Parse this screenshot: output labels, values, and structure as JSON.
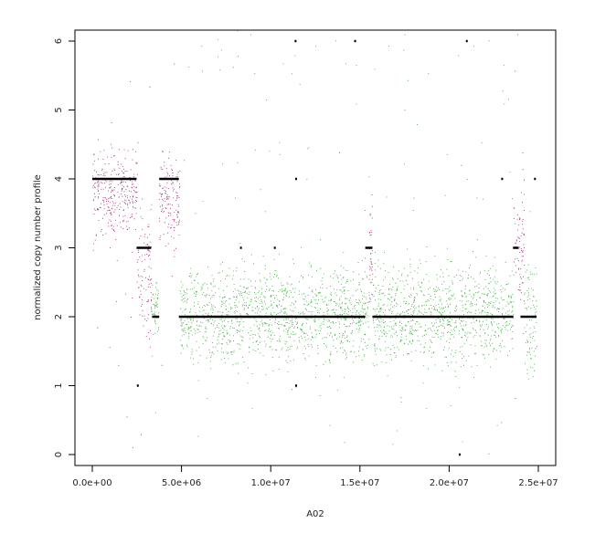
{
  "chart_data": {
    "type": "scatter",
    "title": "",
    "xlabel": "A02",
    "ylabel": "normalized copy number profile",
    "xlim": [
      0,
      25000000
    ],
    "ylim": [
      0,
      6.2
    ],
    "xticks": [
      0,
      5000000,
      10000000,
      15000000,
      20000000,
      25000000
    ],
    "xtick_labels": [
      "0.0e+00",
      "5.0e+06",
      "1.0e+07",
      "1.5e+07",
      "2.0e+07",
      "2.5e+07"
    ],
    "yticks": [
      0,
      1,
      2,
      3,
      4,
      5,
      6
    ],
    "ytick_labels": [
      "0",
      "1",
      "2",
      "3",
      "4",
      "5",
      "6"
    ],
    "grid": false,
    "legend": "none",
    "colors": {
      "gain": "#9b2a78",
      "normal": "#3aa83a",
      "loss": "#4a4a9a",
      "segment": "#000000"
    },
    "point_density": [
      {
        "x_range": [
          0,
          2500000
        ],
        "center": 3.8,
        "spread": 0.6,
        "color": "gain"
      },
      {
        "x_range": [
          2500000,
          3300000
        ],
        "center": 2.6,
        "spread": 0.9,
        "color": "gain"
      },
      {
        "x_range": [
          3300000,
          3700000
        ],
        "center": 2.1,
        "spread": 0.5,
        "color": "normal"
      },
      {
        "x_range": [
          3700000,
          4900000
        ],
        "center": 3.7,
        "spread": 0.7,
        "color": "gain"
      },
      {
        "x_range": [
          4900000,
          15500000
        ],
        "center": 2.05,
        "spread": 0.7,
        "color": "normal"
      },
      {
        "x_range": [
          15500000,
          15700000
        ],
        "center": 2.9,
        "spread": 0.8,
        "color": "gain"
      },
      {
        "x_range": [
          15700000,
          23600000
        ],
        "center": 2.05,
        "spread": 0.7,
        "color": "normal"
      },
      {
        "x_range": [
          23600000,
          24200000
        ],
        "center": 3.0,
        "spread": 0.9,
        "color": "gain"
      },
      {
        "x_range": [
          24200000,
          24900000
        ],
        "center": 2.0,
        "spread": 0.8,
        "color": "normal"
      }
    ],
    "segments": [
      {
        "x0": 0,
        "x1": 2480000,
        "y": 4
      },
      {
        "x0": 2500000,
        "x1": 2530000,
        "y": 1
      },
      {
        "x0": 2480000,
        "x1": 3300000,
        "y": 3
      },
      {
        "x0": 3350000,
        "x1": 3750000,
        "y": 2
      },
      {
        "x0": 3750000,
        "x1": 4850000,
        "y": 4
      },
      {
        "x0": 4850000,
        "x1": 15300000,
        "y": 2
      },
      {
        "x0": 8280000,
        "x1": 8360000,
        "y": 3
      },
      {
        "x0": 10180000,
        "x1": 10260000,
        "y": 3
      },
      {
        "x0": 11340000,
        "x1": 11400000,
        "y": 6
      },
      {
        "x0": 11370000,
        "x1": 11430000,
        "y": 4
      },
      {
        "x0": 11370000,
        "x1": 11430000,
        "y": 1
      },
      {
        "x0": 14680000,
        "x1": 14740000,
        "y": 6
      },
      {
        "x0": 15300000,
        "x1": 15700000,
        "y": 3
      },
      {
        "x0": 15700000,
        "x1": 23600000,
        "y": 2
      },
      {
        "x0": 20540000,
        "x1": 20600000,
        "y": 0
      },
      {
        "x0": 20940000,
        "x1": 21000000,
        "y": 6
      },
      {
        "x0": 22920000,
        "x1": 22990000,
        "y": 4
      },
      {
        "x0": 23580000,
        "x1": 23900000,
        "y": 3
      },
      {
        "x0": 24000000,
        "x1": 24900000,
        "y": 2
      },
      {
        "x0": 24760000,
        "x1": 24830000,
        "y": 4
      }
    ]
  }
}
